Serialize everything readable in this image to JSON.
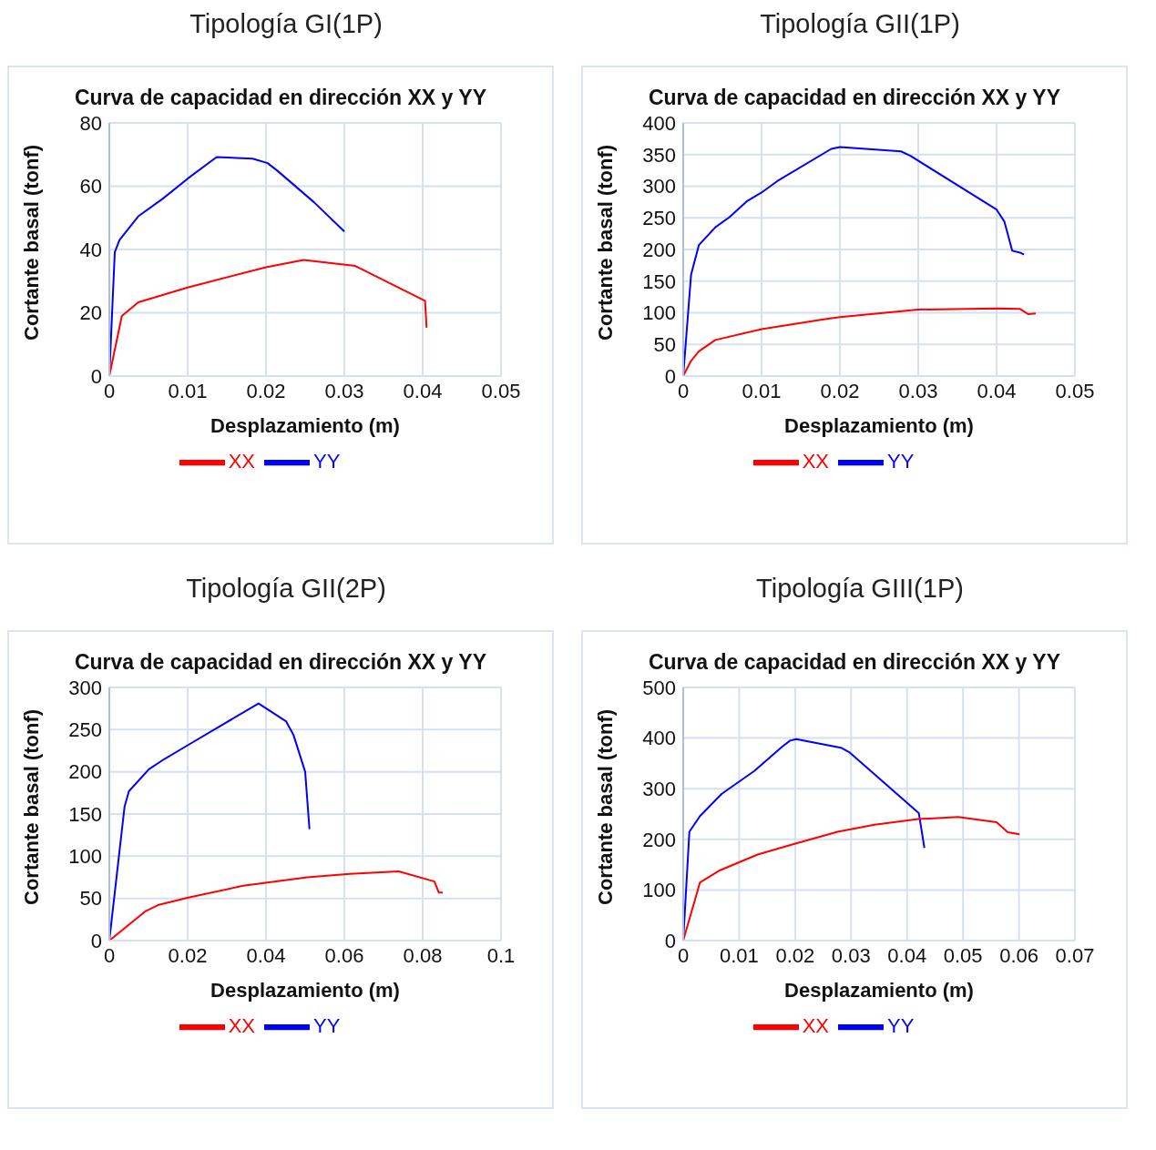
{
  "chart_data": [
    {
      "type": "line",
      "subtitle": "Tipología GI(1P)",
      "title": "Curva de capacidad en dirección XX y YY",
      "xlabel": "Desplazamiento (m)",
      "ylabel": "Cortante basal (tonf)",
      "xlim": [
        0,
        0.05
      ],
      "xticks": [
        0,
        0.01,
        0.02,
        0.03,
        0.04,
        0.05
      ],
      "ylim": [
        0,
        80
      ],
      "yticks": [
        0,
        20,
        40,
        60,
        80
      ],
      "grid": true,
      "legend": "bottom",
      "marker": "none",
      "line_style": "solid",
      "series": [
        {
          "name": "YY",
          "color": "#0000ff",
          "x": [
            0,
            0.0007,
            0.0013,
            0.0037,
            0.0068,
            0.01,
            0.0137,
            0.0183,
            0.0202,
            0.0214,
            0.0261,
            0.03
          ],
          "values": [
            0,
            39.2,
            43,
            50.5,
            56,
            62.4,
            69.2,
            68.7,
            67.3,
            65,
            55,
            45.7
          ]
        },
        {
          "name": "XX",
          "color": "#ff0000",
          "x": [
            0,
            0.0016,
            0.0037,
            0.01,
            0.02,
            0.0248,
            0.0314,
            0.0403,
            0.0405
          ],
          "values": [
            0,
            19,
            23.3,
            28,
            34.4,
            36.7,
            34.8,
            23.8,
            15.3
          ]
        }
      ]
    },
    {
      "type": "line",
      "subtitle": "Tipología GII(1P)",
      "title": "Curva de capacidad en dirección XX y YY",
      "xlabel": "Desplazamiento (m)",
      "ylabel": "Cortante basal (tonf)",
      "xlim": [
        0,
        0.05
      ],
      "xticks": [
        0,
        0.01,
        0.02,
        0.03,
        0.04,
        0.05
      ],
      "ylim": [
        0,
        400
      ],
      "yticks": [
        0,
        50,
        100,
        150,
        200,
        250,
        300,
        350,
        400
      ],
      "grid": true,
      "legend": "bottom",
      "marker": "none",
      "line_style": "solid",
      "series": [
        {
          "name": "YY",
          "color": "#0000ff",
          "x": [
            0,
            0.001,
            0.002,
            0.0041,
            0.0059,
            0.0081,
            0.01,
            0.012,
            0.0189,
            0.02,
            0.0278,
            0.029,
            0.04,
            0.041,
            0.042,
            0.043,
            0.0435
          ],
          "values": [
            0,
            160,
            207,
            235,
            251,
            276,
            290,
            308,
            359,
            362,
            355,
            348,
            263,
            244,
            198,
            195,
            192
          ]
        },
        {
          "name": "XX",
          "color": "#ff0000",
          "x": [
            0,
            0.001,
            0.002,
            0.0041,
            0.01,
            0.0181,
            0.02,
            0.03,
            0.04,
            0.043,
            0.044,
            0.045
          ],
          "values": [
            0,
            24,
            39,
            57,
            74,
            90,
            93,
            105,
            107,
            106,
            98,
            99
          ]
        }
      ]
    },
    {
      "type": "line",
      "subtitle": "Tipología GII(2P)",
      "title": "Curva de capacidad en dirección XX y YY",
      "xlabel": "Desplazamiento (m)",
      "ylabel": "Cortante basal (tonf)",
      "xlim": [
        0,
        0.1
      ],
      "xticks": [
        0,
        0.02,
        0.04,
        0.06,
        0.08,
        0.1
      ],
      "ylim": [
        0,
        300
      ],
      "yticks": [
        0,
        50,
        100,
        150,
        200,
        250,
        300
      ],
      "grid": true,
      "legend": "bottom",
      "marker": "none",
      "line_style": "solid",
      "series": [
        {
          "name": "YY",
          "color": "#0000ff",
          "x": [
            0,
            0.0039,
            0.005,
            0.0101,
            0.014,
            0.0202,
            0.0381,
            0.0451,
            0.047,
            0.05,
            0.0511
          ],
          "values": [
            0,
            159,
            177,
            203,
            215,
            232,
            281,
            260,
            244,
            200,
            132
          ]
        },
        {
          "name": "XX",
          "color": "#ff0000",
          "x": [
            0,
            0.0093,
            0.0124,
            0.0202,
            0.0342,
            0.0505,
            0.0614,
            0.0739,
            0.083,
            0.0841,
            0.0851
          ],
          "values": [
            0,
            35,
            42,
            51,
            65,
            75,
            79,
            82,
            70,
            57,
            57
          ]
        }
      ]
    },
    {
      "type": "line",
      "subtitle": "Tipología GIII(1P)",
      "title": "Curva de capacidad en dirección XX y YY",
      "xlabel": "Desplazamiento (m)",
      "ylabel": "Cortante basal (tonf)",
      "xlim": [
        0,
        0.07
      ],
      "xticks": [
        0,
        0.01,
        0.02,
        0.03,
        0.04,
        0.05,
        0.06,
        0.07
      ],
      "ylim": [
        0,
        500
      ],
      "yticks": [
        0,
        100,
        200,
        300,
        400,
        500
      ],
      "grid": true,
      "legend": "bottom",
      "marker": "none",
      "line_style": "solid",
      "series": [
        {
          "name": "YY",
          "color": "#0000ff",
          "x": [
            0,
            0.0011,
            0.003,
            0.0069,
            0.0127,
            0.0177,
            0.0191,
            0.0202,
            0.0282,
            0.0298,
            0.0421,
            0.0431
          ],
          "values": [
            0,
            215,
            246,
            290,
            335,
            383,
            395,
            398,
            381,
            371,
            252,
            183
          ]
        },
        {
          "name": "XX",
          "color": "#ff0000",
          "x": [
            0,
            0.003,
            0.0066,
            0.0133,
            0.0199,
            0.0276,
            0.0342,
            0.042,
            0.0491,
            0.056,
            0.058,
            0.0601
          ],
          "values": [
            0,
            115,
            139,
            170,
            191,
            215,
            229,
            240,
            244,
            234,
            214,
            210
          ]
        }
      ]
    }
  ]
}
